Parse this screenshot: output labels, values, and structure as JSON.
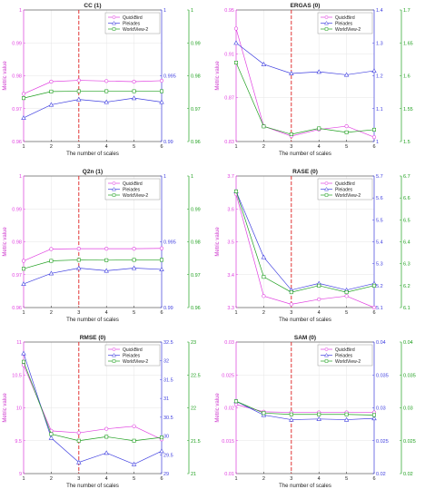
{
  "colors": {
    "quickbird": "#e040e0",
    "pleiades": "#4040e0",
    "worldview2": "#20a020",
    "marker_line": "#e02020",
    "axis": "#222222"
  },
  "chart_data": [
    {
      "type": "line",
      "title": "CC (1)",
      "xlabel": "The number of scales",
      "ylabel": "Metric value",
      "x": [
        1,
        2,
        3,
        4,
        5,
        6
      ],
      "xlim": [
        1,
        6
      ],
      "xticks": [
        "1",
        "2",
        "3",
        "4",
        "5",
        "6"
      ],
      "vline_x": 3,
      "legend_position": "top-right",
      "grid": true,
      "axes": [
        {
          "side": "left",
          "ylim": [
            0.96,
            1.0
          ],
          "ticks": [
            0.96,
            0.97,
            0.98,
            0.99,
            1.0
          ],
          "tick_labels": [
            "0.96",
            "0.97",
            "0.98",
            "0.99",
            "1"
          ],
          "color": "#e040e0"
        },
        {
          "side": "right-inner",
          "ylim": [
            0.99,
            1.0
          ],
          "ticks": [
            0.99,
            0.995,
            1.0
          ],
          "tick_labels": [
            "0.99",
            "0.995",
            "1"
          ],
          "color": "#4040e0"
        },
        {
          "side": "right-outer",
          "ylim": [
            0.96,
            1.0
          ],
          "ticks": [
            0.96,
            0.97,
            0.98,
            0.99,
            1.0
          ],
          "tick_labels": [
            "0.96",
            "0.97",
            "0.98",
            "0.99",
            "1"
          ],
          "color": "#20a020"
        }
      ],
      "series": [
        {
          "name": "QuickBird",
          "axis": 0,
          "marker": "circle",
          "values": [
            0.9745,
            0.9782,
            0.9786,
            0.9784,
            0.9782,
            0.9785
          ]
        },
        {
          "name": "Pleiades",
          "axis": 1,
          "marker": "triangle",
          "values": [
            0.9918,
            0.9928,
            0.9932,
            0.993,
            0.9933,
            0.993
          ]
        },
        {
          "name": "WorldView-2",
          "axis": 2,
          "marker": "square",
          "values": [
            0.9732,
            0.9752,
            0.9753,
            0.9753,
            0.9753,
            0.9753
          ]
        }
      ]
    },
    {
      "type": "line",
      "title": "ERGAS (0)",
      "xlabel": "The number of scales",
      "ylabel": "Metric value",
      "x": [
        1,
        2,
        3,
        4,
        5,
        6
      ],
      "xlim": [
        1,
        6
      ],
      "xticks": [
        "1",
        "2",
        "3",
        "4",
        "5",
        "6"
      ],
      "vline_x": 3,
      "legend_position": "top-right",
      "grid": true,
      "axes": [
        {
          "side": "left",
          "ylim": [
            0.83,
            0.95
          ],
          "ticks": [
            0.83,
            0.87,
            0.91,
            0.95
          ],
          "tick_labels": [
            "0.83",
            "0.87",
            "0.91",
            "0.95"
          ],
          "color": "#e040e0"
        },
        {
          "side": "right-inner",
          "ylim": [
            1.0,
            1.4
          ],
          "ticks": [
            1.0,
            1.1,
            1.2,
            1.3,
            1.4
          ],
          "tick_labels": [
            "1",
            "1.1",
            "1.2",
            "1.3",
            "1.4"
          ],
          "color": "#4040e0"
        },
        {
          "side": "right-outer",
          "ylim": [
            1.5,
            1.7
          ],
          "ticks": [
            1.5,
            1.55,
            1.6,
            1.65,
            1.7
          ],
          "tick_labels": [
            "1.5",
            "1.55",
            "1.6",
            "1.65",
            "1.7"
          ],
          "color": "#20a020"
        }
      ],
      "series": [
        {
          "name": "QuickBird",
          "axis": 0,
          "marker": "circle",
          "values": [
            0.933,
            0.844,
            0.835,
            0.841,
            0.844,
            0.834
          ]
        },
        {
          "name": "Pleiades",
          "axis": 1,
          "marker": "triangle",
          "values": [
            1.3,
            1.235,
            1.207,
            1.212,
            1.203,
            1.215
          ]
        },
        {
          "name": "WorldView-2",
          "axis": 2,
          "marker": "square",
          "values": [
            1.62,
            1.523,
            1.511,
            1.52,
            1.514,
            1.518
          ]
        }
      ]
    },
    {
      "type": "line",
      "title": "Q2n (1)",
      "xlabel": "The number of scales",
      "ylabel": "Metric value",
      "x": [
        1,
        2,
        3,
        4,
        5,
        6
      ],
      "xlim": [
        1,
        6
      ],
      "xticks": [
        "1",
        "2",
        "3",
        "4",
        "5",
        "6"
      ],
      "vline_x": 3,
      "legend_position": "top-right",
      "grid": true,
      "axes": [
        {
          "side": "left",
          "ylim": [
            0.96,
            1.0
          ],
          "ticks": [
            0.96,
            0.97,
            0.98,
            0.99,
            1.0
          ],
          "tick_labels": [
            "0.96",
            "0.97",
            "0.98",
            "0.99",
            "1"
          ],
          "color": "#e040e0"
        },
        {
          "side": "right-inner",
          "ylim": [
            0.99,
            1.0
          ],
          "ticks": [
            0.99,
            0.995,
            1.0
          ],
          "tick_labels": [
            "0.99",
            "0.995",
            "1"
          ],
          "color": "#4040e0"
        },
        {
          "side": "right-outer",
          "ylim": [
            0.96,
            1.0
          ],
          "ticks": [
            0.96,
            0.97,
            0.98,
            0.99,
            1.0
          ],
          "tick_labels": [
            "0.96",
            "0.97",
            "0.98",
            "0.99",
            "1"
          ],
          "color": "#20a020"
        }
      ],
      "series": [
        {
          "name": "QuickBird",
          "axis": 0,
          "marker": "circle",
          "values": [
            0.9742,
            0.9778,
            0.9779,
            0.9779,
            0.9779,
            0.978
          ]
        },
        {
          "name": "Pleiades",
          "axis": 1,
          "marker": "triangle",
          "values": [
            0.9918,
            0.9926,
            0.993,
            0.9928,
            0.993,
            0.9929
          ]
        },
        {
          "name": "WorldView-2",
          "axis": 2,
          "marker": "square",
          "values": [
            0.9718,
            0.9742,
            0.9745,
            0.9744,
            0.9745,
            0.9745
          ]
        }
      ]
    },
    {
      "type": "line",
      "title": "RASE (0)",
      "xlabel": "The number of scales",
      "ylabel": "Metric value",
      "x": [
        1,
        2,
        3,
        4,
        5,
        6
      ],
      "xlim": [
        1,
        6
      ],
      "xticks": [
        "1",
        "2",
        "3",
        "4",
        "5",
        "6"
      ],
      "vline_x": 3,
      "legend_position": "top-right",
      "grid": true,
      "axes": [
        {
          "side": "left",
          "ylim": [
            3.3,
            3.7
          ],
          "ticks": [
            3.3,
            3.4,
            3.5,
            3.6,
            3.7
          ],
          "tick_labels": [
            "3.3",
            "3.4",
            "3.5",
            "3.6",
            "3.7"
          ],
          "color": "#e040e0"
        },
        {
          "side": "right-inner",
          "ylim": [
            5.1,
            5.7
          ],
          "ticks": [
            5.1,
            5.2,
            5.3,
            5.4,
            5.5,
            5.6,
            5.7
          ],
          "tick_labels": [
            "5.1",
            "5.2",
            "5.3",
            "5.4",
            "5.5",
            "5.6",
            "5.7"
          ],
          "color": "#4040e0"
        },
        {
          "side": "right-outer",
          "ylim": [
            6.1,
            6.7
          ],
          "ticks": [
            6.1,
            6.2,
            6.3,
            6.4,
            6.5,
            6.6,
            6.7
          ],
          "tick_labels": [
            "6.1",
            "6.2",
            "6.3",
            "6.4",
            "6.5",
            "6.6",
            "6.7"
          ],
          "color": "#20a020"
        }
      ],
      "series": [
        {
          "name": "QuickBird",
          "axis": 0,
          "marker": "circle",
          "values": [
            3.645,
            3.335,
            3.31,
            3.325,
            3.335,
            3.3
          ]
        },
        {
          "name": "Pleiades",
          "axis": 1,
          "marker": "triangle",
          "values": [
            5.63,
            5.33,
            5.18,
            5.21,
            5.18,
            5.21
          ]
        },
        {
          "name": "WorldView-2",
          "axis": 2,
          "marker": "square",
          "values": [
            6.63,
            6.24,
            6.17,
            6.2,
            6.17,
            6.2
          ]
        }
      ]
    },
    {
      "type": "line",
      "title": "RMSE (0)",
      "xlabel": "The number of scales",
      "ylabel": "Metric value",
      "x": [
        1,
        2,
        3,
        4,
        5,
        6
      ],
      "xlim": [
        1,
        6
      ],
      "xticks": [
        "1",
        "2",
        "3",
        "4",
        "5",
        "6"
      ],
      "vline_x": 3,
      "legend_position": "top-right",
      "grid": true,
      "axes": [
        {
          "side": "left",
          "ylim": [
            9.0,
            11.0
          ],
          "ticks": [
            9.0,
            9.5,
            10.0,
            10.5,
            11.0
          ],
          "tick_labels": [
            "9",
            "9.5",
            "10",
            "10.5",
            "11"
          ],
          "color": "#e040e0"
        },
        {
          "side": "right-inner",
          "ylim": [
            29.0,
            32.5
          ],
          "ticks": [
            29.0,
            29.5,
            30.0,
            30.5,
            31.0,
            31.5,
            32.0,
            32.5
          ],
          "tick_labels": [
            "29",
            "29.5",
            "30",
            "30.5",
            "31",
            "31.5",
            "32",
            "32.5"
          ],
          "color": "#4040e0"
        },
        {
          "side": "right-outer",
          "ylim": [
            21.0,
            23.0
          ],
          "ticks": [
            21.0,
            21.5,
            22.0,
            22.5,
            23.0
          ],
          "tick_labels": [
            "21",
            "21.5",
            "22",
            "22.5",
            "23"
          ],
          "color": "#20a020"
        }
      ],
      "series": [
        {
          "name": "QuickBird",
          "axis": 0,
          "marker": "circle",
          "values": [
            10.65,
            9.65,
            9.62,
            9.68,
            9.72,
            9.52
          ]
        },
        {
          "name": "Pleiades",
          "axis": 1,
          "marker": "triangle",
          "values": [
            32.2,
            29.95,
            29.3,
            29.55,
            29.25,
            29.6
          ]
        },
        {
          "name": "WorldView-2",
          "axis": 2,
          "marker": "square",
          "values": [
            22.7,
            21.6,
            21.5,
            21.56,
            21.5,
            21.55
          ]
        }
      ]
    },
    {
      "type": "line",
      "title": "SAM (0)",
      "xlabel": "The number of scales",
      "ylabel": "Metric value",
      "x": [
        1,
        2,
        3,
        4,
        5,
        6
      ],
      "xlim": [
        1,
        6
      ],
      "xticks": [
        "1",
        "2",
        "3",
        "4",
        "5",
        "6"
      ],
      "vline_x": 3,
      "legend_position": "top-right",
      "grid": true,
      "axes": [
        {
          "side": "left",
          "ylim": [
            0.01,
            0.03
          ],
          "ticks": [
            0.01,
            0.015,
            0.02,
            0.025,
            0.03
          ],
          "tick_labels": [
            "0.01",
            "0.015",
            "0.02",
            "0.025",
            "0.03"
          ],
          "color": "#e040e0"
        },
        {
          "side": "right-inner",
          "ylim": [
            0.02,
            0.04
          ],
          "ticks": [
            0.02,
            0.025,
            0.03,
            0.035,
            0.04
          ],
          "tick_labels": [
            "0.02",
            "0.025",
            "0.03",
            "0.035",
            "0.04"
          ],
          "color": "#4040e0"
        },
        {
          "side": "right-outer",
          "ylim": [
            0.02,
            0.04
          ],
          "ticks": [
            0.02,
            0.025,
            0.03,
            0.035,
            0.04
          ],
          "tick_labels": [
            "0.02",
            "0.025",
            "0.03",
            "0.035",
            "0.04"
          ],
          "color": "#20a020"
        }
      ],
      "series": [
        {
          "name": "QuickBird",
          "axis": 0,
          "marker": "circle",
          "values": [
            0.0205,
            0.0194,
            0.0193,
            0.0193,
            0.0193,
            0.0193
          ]
        },
        {
          "name": "Pleiades",
          "axis": 1,
          "marker": "triangle",
          "values": [
            0.031,
            0.0289,
            0.0282,
            0.0283,
            0.0282,
            0.0284
          ]
        },
        {
          "name": "WorldView-2",
          "axis": 2,
          "marker": "square",
          "values": [
            0.031,
            0.0292,
            0.029,
            0.029,
            0.029,
            0.0289
          ]
        }
      ]
    }
  ]
}
